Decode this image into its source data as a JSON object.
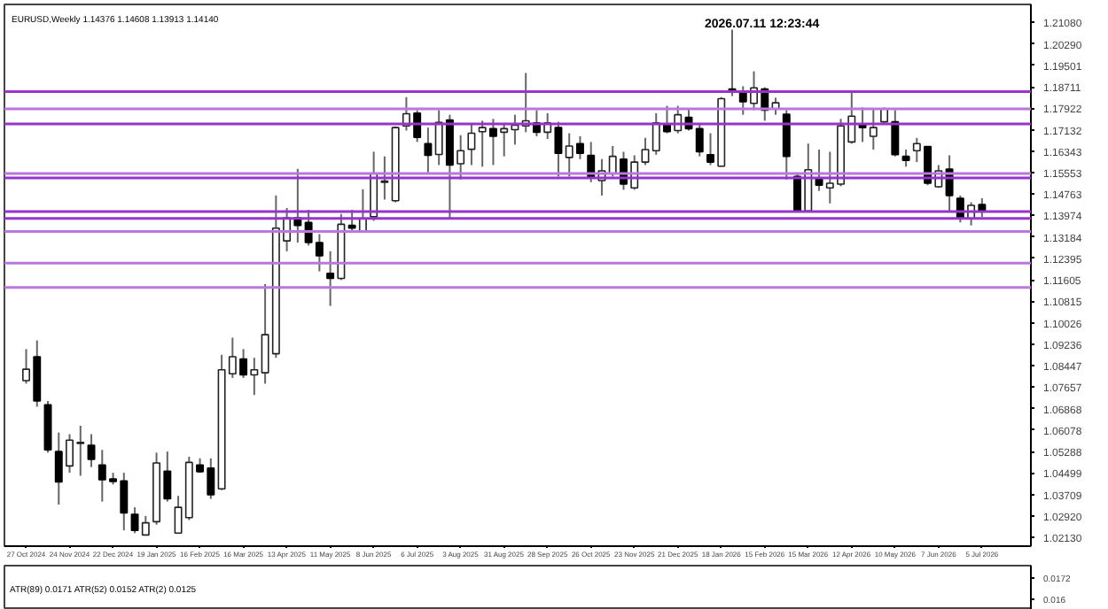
{
  "chart_data": {
    "type": "candlestick",
    "title": "EURUSD,Weekly  1.14376 1.14608 1.13913 1.14140",
    "annotations": [
      "2026.07.11 12:23:44",
      "ATR(89) 0.0171   ATR(52) 0.0152   ATR(2) 0.0125",
      "0.0172",
      "0.016"
    ],
    "categories": [
      "27 Oct 2024",
      null,
      null,
      null,
      "24 Nov 2024",
      null,
      null,
      null,
      "22 Dec 2024",
      null,
      null,
      null,
      "19 Jan 2025",
      null,
      null,
      null,
      "16 Feb 2025",
      null,
      null,
      null,
      "16 Mar 2025",
      null,
      null,
      null,
      "13 Apr 2025",
      null,
      null,
      null,
      "11 May 2025",
      null,
      null,
      null,
      "8 Jun 2025",
      null,
      null,
      null,
      "6 Jul 2025",
      null,
      null,
      null,
      "3 Aug 2025",
      null,
      null,
      null,
      "31 Aug 2025",
      null,
      null,
      null,
      "28 Sep 2025",
      null,
      null,
      null,
      "26 Oct 2025",
      null,
      null,
      null,
      "23 Nov 2025",
      null,
      null,
      null,
      "21 Dec 2025",
      null,
      null,
      null,
      "18 Jan 2026",
      null,
      null,
      null,
      "15 Feb 2026",
      null,
      null,
      null,
      "15 Mar 2026",
      null,
      null,
      null,
      "12 Apr 2026",
      null,
      null,
      null,
      "10 May 2026",
      null,
      null,
      null,
      "7 Jun 2026",
      null,
      null,
      null,
      "5 Jul 2026"
    ],
    "ohlc": [
      [
        1.079,
        1.0906,
        1.0779,
        1.0832
      ],
      [
        1.0878,
        1.0938,
        1.0694,
        1.0715
      ],
      [
        1.0701,
        1.0715,
        1.0525,
        1.0535
      ],
      [
        1.0529,
        1.0599,
        1.0334,
        1.0417
      ],
      [
        1.0476,
        1.0593,
        1.0451,
        1.0571
      ],
      [
        1.0559,
        1.0624,
        1.044,
        1.0563
      ],
      [
        1.0552,
        1.0593,
        1.0472,
        1.05
      ],
      [
        1.048,
        1.0535,
        1.0345,
        1.0425
      ],
      [
        1.0428,
        1.0451,
        1.0408,
        1.0419
      ],
      [
        1.0421,
        1.0451,
        1.0239,
        1.0303
      ],
      [
        1.0298,
        1.0324,
        1.0229,
        1.0239
      ],
      [
        1.0222,
        1.0292,
        1.0222,
        1.0267
      ],
      [
        1.0271,
        1.0525,
        1.026,
        1.0487
      ],
      [
        1.0457,
        1.0529,
        1.0345,
        1.0355
      ],
      [
        1.0229,
        1.0366,
        1.0229,
        1.0324
      ],
      [
        1.0286,
        1.051,
        1.0277,
        1.0489
      ],
      [
        1.048,
        1.0504,
        1.0451,
        1.0455
      ],
      [
        1.0468,
        1.0504,
        1.0355,
        1.037
      ],
      [
        1.0392,
        1.0885,
        1.0387,
        1.083
      ],
      [
        1.0815,
        1.0948,
        1.08,
        1.0878
      ],
      [
        1.087,
        1.0906,
        1.08,
        1.0811
      ],
      [
        1.0811,
        1.0874,
        1.0737,
        1.083
      ],
      [
        1.0819,
        1.1145,
        1.0779,
        1.0959
      ],
      [
        1.0889,
        1.1471,
        1.0874,
        1.1351
      ],
      [
        1.1304,
        1.1425,
        1.1266,
        1.1389
      ],
      [
        1.1389,
        1.1569,
        1.1298,
        1.1361
      ],
      [
        1.1372,
        1.1418,
        1.1287,
        1.1298
      ],
      [
        1.1298,
        1.1329,
        1.1192,
        1.1249
      ],
      [
        1.1185,
        1.1266,
        1.1065,
        1.1166
      ],
      [
        1.1166,
        1.1403,
        1.116,
        1.1365
      ],
      [
        1.1361,
        1.1418,
        1.134,
        1.1351
      ],
      [
        1.134,
        1.1494,
        1.1334,
        1.1386
      ],
      [
        1.1393,
        1.1632,
        1.1378,
        1.1552
      ],
      [
        1.152,
        1.1615,
        1.1456,
        1.1524
      ],
      [
        1.1452,
        1.1725,
        1.1446,
        1.1721
      ],
      [
        1.1727,
        1.1833,
        1.171,
        1.1772
      ],
      [
        1.1774,
        1.1785,
        1.1668,
        1.1685
      ],
      [
        1.1662,
        1.1721,
        1.1556,
        1.1619
      ],
      [
        1.1622,
        1.1785,
        1.1583,
        1.174
      ],
      [
        1.1749,
        1.1768,
        1.1386,
        1.1583
      ],
      [
        1.1588,
        1.1693,
        1.153,
        1.1636
      ],
      [
        1.1641,
        1.1732,
        1.1583,
        1.17
      ],
      [
        1.1706,
        1.1746,
        1.1577,
        1.1721
      ],
      [
        1.1717,
        1.1753,
        1.1583,
        1.1689
      ],
      [
        1.1704,
        1.1738,
        1.1615,
        1.1717
      ],
      [
        1.1713,
        1.1768,
        1.1658,
        1.173
      ],
      [
        1.1727,
        1.1922,
        1.1704,
        1.1746
      ],
      [
        1.1738,
        1.1785,
        1.1689,
        1.1704
      ],
      [
        1.1704,
        1.1774,
        1.1679,
        1.1738
      ],
      [
        1.1721,
        1.1742,
        1.1541,
        1.1626
      ],
      [
        1.1611,
        1.17,
        1.1541,
        1.1653
      ],
      [
        1.1662,
        1.1689,
        1.1605,
        1.1626
      ],
      [
        1.1619,
        1.1668,
        1.152,
        1.1541
      ],
      [
        1.1526,
        1.1605,
        1.1471,
        1.1562
      ],
      [
        1.1552,
        1.1653,
        1.1541,
        1.1615
      ],
      [
        1.1605,
        1.1632,
        1.1492,
        1.1513
      ],
      [
        1.1499,
        1.1619,
        1.1492,
        1.1594
      ],
      [
        1.1594,
        1.1683,
        1.1583,
        1.164
      ],
      [
        1.1636,
        1.1774,
        1.1621,
        1.1738
      ],
      [
        1.1732,
        1.1801,
        1.17,
        1.1706
      ],
      [
        1.171,
        1.1801,
        1.17,
        1.1768
      ],
      [
        1.1759,
        1.1789,
        1.171,
        1.1717
      ],
      [
        1.1717,
        1.1732,
        1.1615,
        1.1632
      ],
      [
        1.1621,
        1.17,
        1.1583,
        1.1594
      ],
      [
        1.1579,
        1.1833,
        1.1577,
        1.1827
      ],
      [
        1.1863,
        1.2081,
        1.1837,
        1.1852
      ],
      [
        1.1852,
        1.1873,
        1.1768,
        1.1816
      ],
      [
        1.181,
        1.1928,
        1.1785,
        1.1867
      ],
      [
        1.1863,
        1.1869,
        1.1746,
        1.1785
      ],
      [
        1.1789,
        1.1831,
        1.1768,
        1.1812
      ],
      [
        1.177,
        1.1785,
        1.153,
        1.1615
      ],
      [
        1.1541,
        1.1552,
        1.1414,
        1.1414
      ],
      [
        1.1414,
        1.1662,
        1.1414,
        1.1566
      ],
      [
        1.1535,
        1.164,
        1.1488,
        1.1509
      ],
      [
        1.1499,
        1.1632,
        1.1442,
        1.1516
      ],
      [
        1.1513,
        1.1753,
        1.1505,
        1.1727
      ],
      [
        1.1668,
        1.1852,
        1.1662,
        1.1763
      ],
      [
        1.1732,
        1.1795,
        1.1668,
        1.1721
      ],
      [
        1.1689,
        1.1789,
        1.164,
        1.1721
      ],
      [
        1.1742,
        1.1795,
        1.1732,
        1.1789
      ],
      [
        1.1742,
        1.1785,
        1.1615,
        1.1621
      ],
      [
        1.1615,
        1.164,
        1.1577,
        1.16
      ],
      [
        1.1636,
        1.1683,
        1.1594,
        1.1662
      ],
      [
        1.1651,
        1.1653,
        1.1509,
        1.1516
      ],
      [
        1.1503,
        1.1583,
        1.1499,
        1.1562
      ],
      [
        1.1568,
        1.1619,
        1.1414,
        1.1471
      ],
      [
        1.1461,
        1.1471,
        1.1372,
        1.1386
      ],
      [
        1.1386,
        1.1446,
        1.1361,
        1.1435
      ],
      [
        1.14376,
        1.14608,
        1.13913,
        1.1414
      ]
    ],
    "ylim": [
      1.0181,
      1.2174
    ],
    "yticks": [
      {
        "value": 1.0213,
        "label": "1.02130"
      },
      {
        "value": 1.0292,
        "label": "1.02920"
      },
      {
        "value": 1.03709,
        "label": "1.03709"
      },
      {
        "value": 1.04499,
        "label": "1.04499"
      },
      {
        "value": 1.05288,
        "label": "1.05288"
      },
      {
        "value": 1.06078,
        "label": "1.06078"
      },
      {
        "value": 1.06868,
        "label": "1.06868"
      },
      {
        "value": 1.07657,
        "label": "1.07657"
      },
      {
        "value": 1.08447,
        "label": "1.08447"
      },
      {
        "value": 1.09236,
        "label": "1.09236"
      },
      {
        "value": 1.10026,
        "label": "1.10026"
      },
      {
        "value": 1.10815,
        "label": "1.10815"
      },
      {
        "value": 1.11605,
        "label": "1.11605"
      },
      {
        "value": 1.12395,
        "label": "1.12395"
      },
      {
        "value": 1.13184,
        "label": "1.13184"
      },
      {
        "value": 1.13974,
        "label": "1.13974"
      },
      {
        "value": 1.14763,
        "label": "1.14763"
      },
      {
        "value": 1.15553,
        "label": "1.15553"
      },
      {
        "value": 1.16343,
        "label": "1.16343"
      },
      {
        "value": 1.17132,
        "label": "1.17132"
      },
      {
        "value": 1.17922,
        "label": "1.17922"
      },
      {
        "value": 1.18711,
        "label": "1.18711"
      },
      {
        "value": 1.19501,
        "label": "1.19501"
      },
      {
        "value": 1.2029,
        "label": "1.20290"
      },
      {
        "value": 1.2108,
        "label": "1.21080"
      }
    ],
    "ref_lines": [
      {
        "axis": "y",
        "value": 1.1853,
        "color": "#9933cc"
      },
      {
        "axis": "y",
        "value": 1.179,
        "color": "#bb77dd"
      },
      {
        "axis": "y",
        "value": 1.1734,
        "color": "#9933cc"
      },
      {
        "axis": "y",
        "value": 1.1552,
        "color": "#bb77dd"
      },
      {
        "axis": "y",
        "value": 1.1536,
        "color": "#9933cc"
      },
      {
        "axis": "y",
        "value": 1.1412,
        "color": "#9933cc"
      },
      {
        "axis": "y",
        "value": 1.1387,
        "color": "#9933cc"
      },
      {
        "axis": "y",
        "value": 1.1339,
        "color": "#bb77dd"
      },
      {
        "axis": "y",
        "value": 1.1222,
        "color": "#bb77dd"
      },
      {
        "axis": "y",
        "value": 1.1133,
        "color": "#bb77dd"
      }
    ]
  }
}
